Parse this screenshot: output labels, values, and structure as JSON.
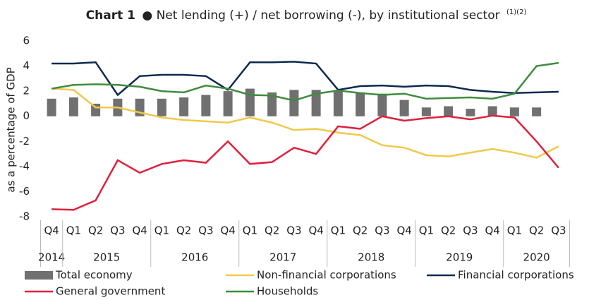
{
  "chart_data": {
    "type": "combo",
    "title_label": "Chart 1",
    "title": "● Net lending (+) / net borrowing (-), by institutional sector",
    "title_notes": "(1)(2)",
    "y_label": "as a percentage of GDP",
    "categories": [
      "Q4",
      "Q1",
      "Q2",
      "Q3",
      "Q4",
      "Q1",
      "Q2",
      "Q3",
      "Q4",
      "Q1",
      "Q2",
      "Q3",
      "Q4",
      "Q1",
      "Q2",
      "Q3",
      "Q4",
      "Q1",
      "Q2",
      "Q3",
      "Q4",
      "Q1",
      "Q2",
      "Q3"
    ],
    "year_groups": [
      {
        "label": "2014",
        "count": 1
      },
      {
        "label": "2015",
        "count": 4
      },
      {
        "label": "2016",
        "count": 4
      },
      {
        "label": "2017",
        "count": 4
      },
      {
        "label": "2018",
        "count": 4
      },
      {
        "label": "2019",
        "count": 4
      },
      {
        "label": "2020",
        "count": 3
      }
    ],
    "ylim": [
      -8,
      6
    ],
    "yticks": [
      -8,
      -6,
      -4,
      -2,
      0,
      2,
      4,
      6
    ],
    "series": [
      {
        "name": "Total economy",
        "type": "bar",
        "color": "#707070",
        "values": [
          1.4,
          1.5,
          1.0,
          1.4,
          1.4,
          1.4,
          1.5,
          1.7,
          2.0,
          2.2,
          1.9,
          2.1,
          2.1,
          2.1,
          1.9,
          1.8,
          1.3,
          0.7,
          0.8,
          0.6,
          0.8,
          0.7,
          0.7,
          null
        ]
      },
      {
        "name": "Non-financial corporations",
        "type": "line",
        "color": "#f0c94a",
        "values": [
          2.2,
          2.1,
          0.7,
          0.7,
          0.3,
          -0.1,
          -0.3,
          -0.4,
          -0.5,
          -0.1,
          -0.5,
          -1.1,
          -1.0,
          -1.3,
          -1.5,
          -2.3,
          -2.5,
          -3.1,
          -3.2,
          -2.9,
          -2.6,
          -2.9,
          -3.3,
          -2.4
        ]
      },
      {
        "name": "Financial corporations",
        "type": "line",
        "color": "#0d2a4f",
        "values": [
          4.2,
          4.2,
          4.3,
          1.7,
          3.2,
          3.3,
          3.3,
          3.2,
          2.1,
          4.3,
          4.3,
          4.35,
          4.2,
          2.1,
          2.4,
          2.45,
          2.35,
          2.45,
          2.4,
          2.1,
          1.95,
          1.85,
          1.9,
          1.95
        ]
      },
      {
        "name": "General government",
        "type": "line",
        "color": "#e0203c",
        "values": [
          -7.4,
          -7.45,
          -6.7,
          -3.5,
          -4.5,
          -3.8,
          -3.5,
          -3.7,
          -2.0,
          -3.8,
          -3.65,
          -2.5,
          -3.0,
          -0.8,
          -1.0,
          0.0,
          -0.35,
          -0.15,
          0.0,
          -0.25,
          0.05,
          -0.1,
          -2.0,
          -4.1
        ]
      },
      {
        "name": "Households",
        "type": "line",
        "color": "#3f8b3f",
        "values": [
          2.2,
          2.5,
          2.55,
          2.5,
          2.35,
          2.0,
          1.9,
          2.45,
          2.2,
          1.7,
          1.65,
          1.25,
          1.8,
          2.05,
          1.85,
          1.7,
          1.8,
          1.4,
          1.45,
          1.5,
          1.4,
          1.8,
          4.0,
          4.25
        ]
      }
    ]
  }
}
